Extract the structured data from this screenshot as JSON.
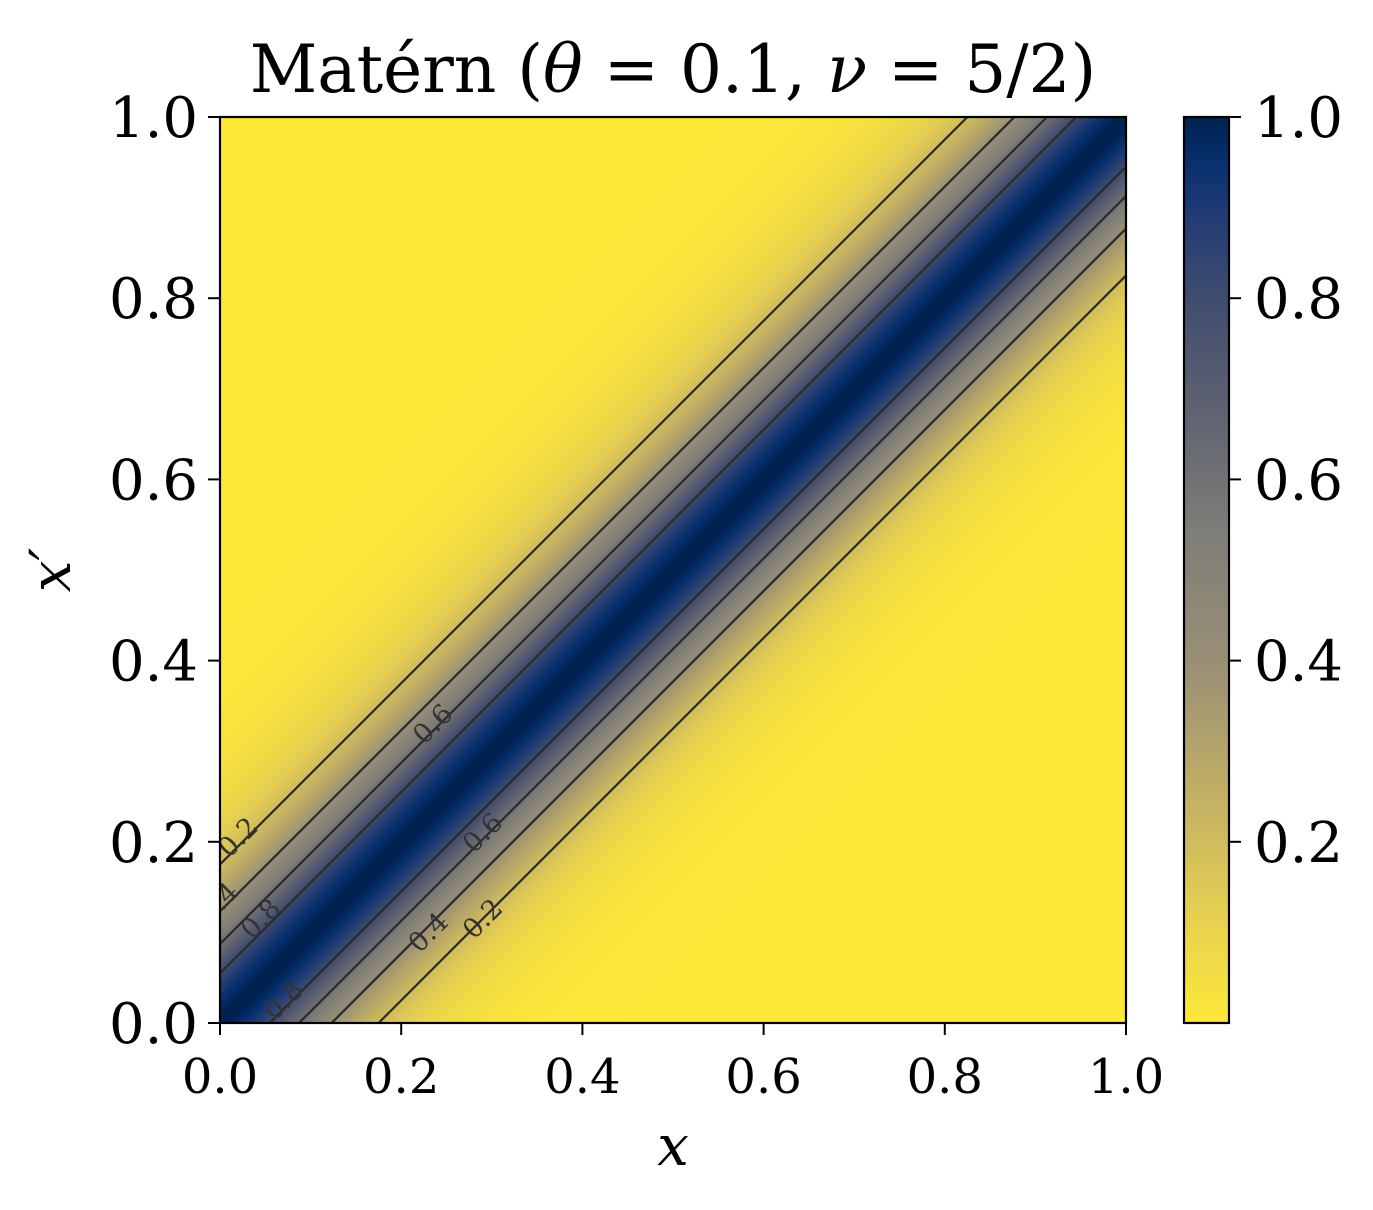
{
  "chart_data": {
    "type": "heatmap",
    "title": {
      "prefix": "Matérn (",
      "theta_symbol": "θ",
      "eq1": " = 0.1, ",
      "nu_symbol": "ν",
      "eq2": " = 5/2)"
    },
    "xlabel": "x",
    "ylabel": "x′",
    "xlim": [
      0.0,
      1.0
    ],
    "ylim": [
      0.0,
      1.0
    ],
    "xticks": [
      "0.0",
      "0.2",
      "0.4",
      "0.6",
      "0.8",
      "1.0"
    ],
    "yticks": [
      "0.0",
      "0.2",
      "0.4",
      "0.6",
      "0.8",
      "1.0"
    ],
    "kernel": {
      "name": "Matérn",
      "theta": 0.1,
      "nu": 2.5
    },
    "colormap": {
      "name": "cividis_r",
      "low_color": "#fde838",
      "high_color": "#00224e"
    },
    "colorbar": {
      "range": [
        0.0,
        1.0
      ],
      "ticks": [
        "0.2",
        "0.4",
        "0.6",
        "0.8",
        "1.0"
      ]
    },
    "contour_levels": [
      0.2,
      0.4,
      0.6,
      0.8
    ],
    "contour_labels": [
      {
        "text": "0.2",
        "x": 0.02,
        "y": 0.205
      },
      {
        "text": ".4",
        "x": 0.005,
        "y": 0.14
      },
      {
        "text": "0.8",
        "x": 0.045,
        "y": 0.115
      },
      {
        "text": "0.6",
        "x": 0.235,
        "y": 0.33
      },
      {
        "text": "0.8",
        "x": 0.07,
        "y": 0.025
      },
      {
        "text": "0.6",
        "x": 0.29,
        "y": 0.21
      },
      {
        "text": "0.4",
        "x": 0.23,
        "y": 0.1
      },
      {
        "text": "0.2",
        "x": 0.29,
        "y": 0.115
      }
    ],
    "grid": false
  }
}
